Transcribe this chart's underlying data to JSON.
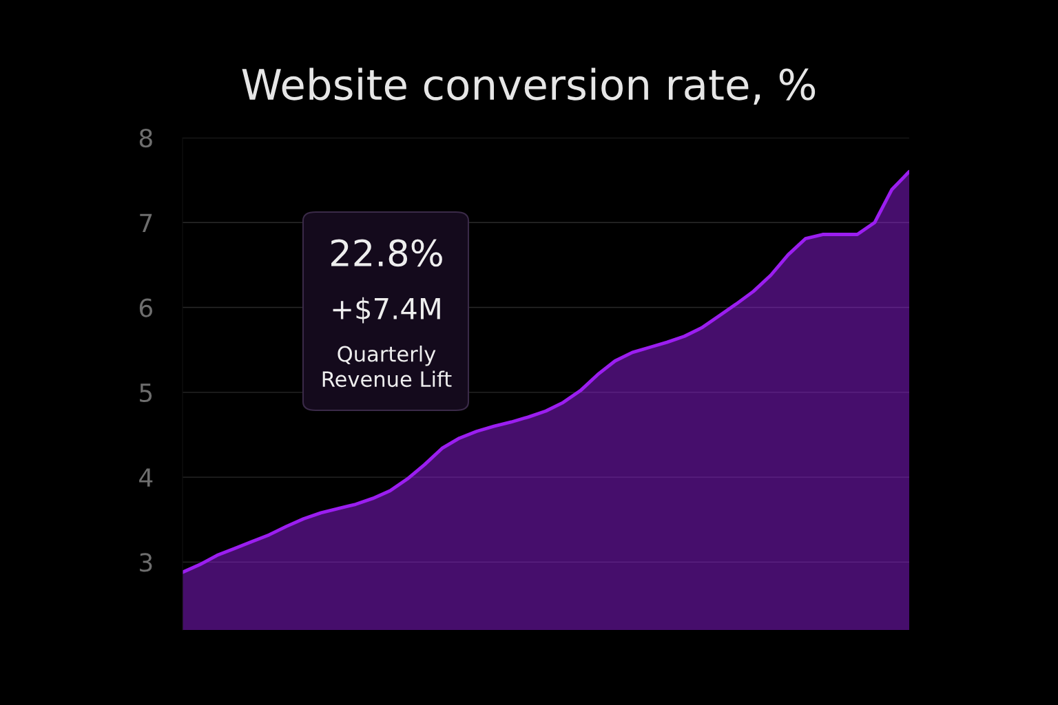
{
  "chart_data": {
    "type": "area",
    "title": "Website conversion rate, %",
    "categories": [
      null,
      null,
      null,
      null,
      null,
      null,
      null,
      null,
      null,
      null,
      null,
      null,
      null,
      null,
      null,
      null,
      null,
      null,
      null,
      null,
      null,
      null,
      null,
      null,
      null,
      null,
      null,
      null,
      null,
      null,
      null,
      null,
      null,
      null,
      null,
      null,
      null,
      null,
      null,
      null,
      null,
      null,
      null
    ],
    "series": [
      {
        "color": "#9b1ef0",
        "values": [
          2.88,
          2.97,
          3.08,
          3.16,
          3.24,
          3.32,
          3.42,
          3.51,
          3.58,
          3.63,
          3.68,
          3.75,
          3.84,
          3.98,
          4.15,
          4.34,
          4.46,
          4.54,
          4.6,
          4.65,
          4.71,
          4.78,
          4.88,
          5.02,
          5.21,
          5.37,
          5.47,
          5.53,
          5.59,
          5.66,
          5.76,
          5.9,
          6.04,
          6.19,
          6.38,
          6.62,
          6.81,
          6.86,
          6.86,
          6.86,
          7.0,
          7.39,
          7.6
        ]
      }
    ],
    "ylim": [
      2.2,
      8
    ],
    "yticks": [
      3,
      4,
      5,
      6,
      7,
      8
    ],
    "grid": "y",
    "tick_labels": "y",
    "annotations": [
      "22.8%",
      "+$7.4M",
      "Quarterly\nRevenue Lift"
    ]
  }
}
